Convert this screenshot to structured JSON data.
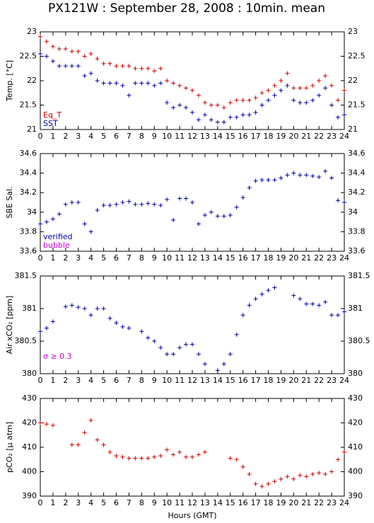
{
  "title": "PX121W : September 28, 2008 : 10min. mean",
  "chart_data": [
    {
      "type": "scatter",
      "ylabel": "Temp. [°C]",
      "legend": "lower left",
      "xlim": [
        0,
        24
      ],
      "xticks": [
        0,
        1,
        2,
        3,
        4,
        5,
        6,
        7,
        8,
        9,
        10,
        11,
        12,
        13,
        14,
        15,
        16,
        17,
        18,
        19,
        20,
        21,
        22,
        23,
        24
      ],
      "ylim": [
        21,
        23
      ],
      "yticks": [
        21,
        21.5,
        22,
        22.5,
        23
      ],
      "x": [
        0,
        0.5,
        1,
        1.5,
        2,
        2.5,
        3,
        3.5,
        4,
        4.5,
        5,
        5.5,
        6,
        6.5,
        7,
        7.5,
        8,
        8.5,
        9,
        9.5,
        10,
        10.5,
        11,
        11.5,
        12,
        12.5,
        13,
        13.5,
        14,
        14.5,
        15,
        15.5,
        16,
        16.5,
        17,
        17.5,
        18,
        18.5,
        19,
        19.5,
        20,
        20.5,
        21,
        21.5,
        22,
        22.5,
        23,
        23.5,
        24
      ],
      "series": [
        {
          "name": "Eq_T",
          "color": "#cc0000",
          "values": [
            22.9,
            22.8,
            22.7,
            22.65,
            22.65,
            22.6,
            22.6,
            22.5,
            22.55,
            22.45,
            22.35,
            22.35,
            22.3,
            22.3,
            22.3,
            22.25,
            22.25,
            22.25,
            22.2,
            22.25,
            22.0,
            21.95,
            21.9,
            21.85,
            21.8,
            21.7,
            21.55,
            21.5,
            21.5,
            21.45,
            21.55,
            21.6,
            21.6,
            21.6,
            21.65,
            21.75,
            21.8,
            21.9,
            22.0,
            22.15,
            21.85,
            21.85,
            21.85,
            21.9,
            22.0,
            22.1,
            21.9,
            21.6,
            21.8
          ]
        },
        {
          "name": "SST",
          "color": "#0000aa",
          "values": [
            22.55,
            22.5,
            22.4,
            22.3,
            22.3,
            22.3,
            22.3,
            22.1,
            22.15,
            22.0,
            21.95,
            21.95,
            21.95,
            21.9,
            21.7,
            21.95,
            21.95,
            21.95,
            21.9,
            21.95,
            21.55,
            21.45,
            21.5,
            21.45,
            21.35,
            21.2,
            21.3,
            21.2,
            21.15,
            21.15,
            21.25,
            21.25,
            21.3,
            21.3,
            21.35,
            21.5,
            21.6,
            21.7,
            21.8,
            21.9,
            21.6,
            21.55,
            21.55,
            21.6,
            21.7,
            21.85,
            21.5,
            21.25,
            21.3
          ]
        }
      ]
    },
    {
      "type": "scatter",
      "ylabel": "SBE Sal.",
      "legend": "lower left",
      "xlim": [
        0,
        24
      ],
      "xticks": [
        0,
        1,
        2,
        3,
        4,
        5,
        6,
        7,
        8,
        9,
        10,
        11,
        12,
        13,
        14,
        15,
        16,
        17,
        18,
        19,
        20,
        21,
        22,
        23,
        24
      ],
      "ylim": [
        33.6,
        34.6
      ],
      "yticks": [
        33.6,
        33.8,
        34,
        34.2,
        34.4,
        34.6
      ],
      "x": [
        0,
        0.5,
        1,
        1.5,
        2,
        2.5,
        3,
        3.5,
        4,
        4.5,
        5,
        5.5,
        6,
        6.5,
        7,
        7.5,
        8,
        8.5,
        9,
        9.5,
        10,
        10.5,
        11,
        11.5,
        12,
        12.5,
        13,
        13.5,
        14,
        14.5,
        15,
        15.5,
        16,
        16.5,
        17,
        17.5,
        18,
        18.5,
        19,
        19.5,
        20,
        20.5,
        21,
        21.5,
        22,
        22.5,
        23,
        23.5,
        24
      ],
      "series": [
        {
          "name": "verified",
          "color": "#0000aa",
          "values": [
            33.88,
            33.9,
            33.93,
            33.98,
            34.08,
            34.1,
            34.1,
            33.88,
            33.8,
            34.02,
            34.07,
            34.07,
            34.08,
            34.1,
            34.11,
            34.08,
            34.08,
            34.09,
            34.08,
            34.07,
            34.13,
            33.92,
            34.14,
            34.14,
            34.1,
            33.88,
            33.97,
            34.0,
            33.96,
            33.96,
            33.97,
            34.05,
            34.15,
            34.25,
            34.32,
            34.33,
            34.33,
            34.33,
            34.35,
            34.38,
            34.4,
            34.38,
            34.38,
            34.37,
            34.36,
            34.42,
            34.35,
            34.12,
            34.1
          ]
        },
        {
          "name": "bubble",
          "color": "#cc00cc",
          "values": [
            null,
            null,
            null,
            null,
            null,
            null,
            null,
            null,
            null,
            null,
            null,
            null,
            null,
            null,
            null,
            null,
            null,
            null,
            null,
            null,
            null,
            null,
            null,
            null,
            null,
            null,
            null,
            null,
            null,
            null,
            null,
            null,
            null,
            null,
            null,
            null,
            null,
            null,
            null,
            null,
            null,
            null,
            null,
            null,
            null,
            null,
            null,
            null,
            null
          ]
        }
      ]
    },
    {
      "type": "scatter",
      "ylabel": "Air xCO₂ [ppm]",
      "annotation": "σ ≥ 0.3",
      "annotation_color": "#cc00cc",
      "xlim": [
        0,
        24
      ],
      "xticks": [
        0,
        1,
        2,
        3,
        4,
        5,
        6,
        7,
        8,
        9,
        10,
        11,
        12,
        13,
        14,
        15,
        16,
        17,
        18,
        19,
        20,
        21,
        22,
        23,
        24
      ],
      "ylim": [
        380,
        381.5
      ],
      "yticks": [
        380,
        380.5,
        381,
        381.5
      ],
      "x": [
        0,
        0.5,
        1,
        1.5,
        2,
        2.5,
        3,
        3.5,
        4,
        4.5,
        5,
        5.5,
        6,
        6.5,
        7,
        7.5,
        8,
        8.5,
        9,
        9.5,
        10,
        10.5,
        11,
        11.5,
        12,
        12.5,
        13,
        13.5,
        14,
        14.5,
        15,
        15.5,
        16,
        16.5,
        17,
        17.5,
        18,
        18.5,
        19,
        19.5,
        20,
        20.5,
        21,
        21.5,
        22,
        22.5,
        23,
        23.5,
        24
      ],
      "series": [
        {
          "color": "#0000aa",
          "values": [
            380.65,
            380.7,
            380.8,
            null,
            381.03,
            381.05,
            381.02,
            381.0,
            380.9,
            381.0,
            381.0,
            380.85,
            380.78,
            380.72,
            380.7,
            null,
            380.65,
            380.55,
            380.5,
            380.4,
            380.3,
            380.3,
            380.4,
            380.45,
            380.45,
            380.3,
            380.15,
            null,
            380.05,
            380.15,
            380.3,
            380.6,
            380.9,
            381.05,
            381.15,
            381.22,
            381.28,
            381.32,
            null,
            null,
            381.2,
            381.15,
            381.07,
            381.07,
            381.05,
            381.1,
            380.9,
            380.9,
            380.95
          ]
        }
      ]
    },
    {
      "type": "scatter",
      "ylabel": "pCO₂ [μ atm]",
      "xlabel": "Hours (GMT)",
      "xlim": [
        0,
        24
      ],
      "xticks": [
        0,
        1,
        2,
        3,
        4,
        5,
        6,
        7,
        8,
        9,
        10,
        11,
        12,
        13,
        14,
        15,
        16,
        17,
        18,
        19,
        20,
        21,
        22,
        23,
        24
      ],
      "ylim": [
        390,
        430
      ],
      "yticks": [
        390,
        400,
        410,
        420,
        430
      ],
      "x": [
        0,
        0.5,
        1,
        1.5,
        2,
        2.5,
        3,
        3.5,
        4,
        4.5,
        5,
        5.5,
        6,
        6.5,
        7,
        7.5,
        8,
        8.5,
        9,
        9.5,
        10,
        10.5,
        11,
        11.5,
        12,
        12.5,
        13,
        13.5,
        14,
        14.5,
        15,
        15.5,
        16,
        16.5,
        17,
        17.5,
        18,
        18.5,
        19,
        19.5,
        20,
        20.5,
        21,
        21.5,
        22,
        22.5,
        23,
        23.5,
        24
      ],
      "series": [
        {
          "color": "#cc0000",
          "values": [
            420,
            419.5,
            419,
            null,
            null,
            411,
            411,
            416,
            421,
            413,
            411,
            408,
            406.5,
            406,
            405.5,
            405.5,
            405.5,
            405.5,
            406,
            406.5,
            409,
            407,
            408,
            406,
            406,
            407,
            408,
            null,
            null,
            null,
            405.5,
            405,
            402,
            399,
            395,
            394,
            395,
            396,
            397,
            398,
            397,
            398.5,
            398,
            399,
            399.5,
            399,
            400,
            405,
            408
          ]
        }
      ]
    }
  ]
}
